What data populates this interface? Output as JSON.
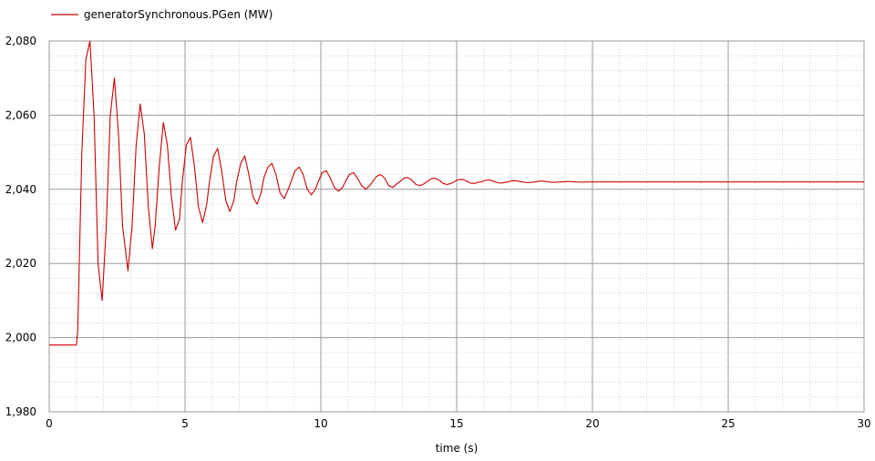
{
  "chart_data": {
    "type": "line",
    "xlabel": "time (s)",
    "ylabel": "",
    "xlim": [
      0,
      30
    ],
    "ylim": [
      1980,
      2080
    ],
    "x_ticks": [
      0,
      5,
      10,
      15,
      20,
      25,
      30
    ],
    "x_tick_labels": [
      "0",
      "5",
      "10",
      "15",
      "20",
      "25",
      "30"
    ],
    "y_ticks": [
      1980,
      2000,
      2020,
      2040,
      2060,
      2080
    ],
    "y_tick_labels": [
      "1,980",
      "2,000",
      "2,020",
      "2,040",
      "2,060",
      "2,080"
    ],
    "grid": true,
    "legend_position": "top-left",
    "series": [
      {
        "name": "generatorSynchronous.PGen (MW)",
        "color": "#cc0000",
        "x": [
          0,
          1.0,
          1.05,
          1.2,
          1.35,
          1.5,
          1.65,
          1.8,
          1.95,
          2.1,
          2.25,
          2.4,
          2.55,
          2.7,
          2.9,
          3.05,
          3.2,
          3.35,
          3.5,
          3.65,
          3.8,
          3.9,
          4.05,
          4.2,
          4.35,
          4.5,
          4.65,
          4.8,
          4.9,
          5.05,
          5.2,
          5.35,
          5.5,
          5.65,
          5.8,
          5.9,
          6.05,
          6.2,
          6.35,
          6.5,
          6.65,
          6.8,
          6.9,
          7.05,
          7.2,
          7.35,
          7.5,
          7.65,
          7.8,
          7.9,
          8.05,
          8.2,
          8.35,
          8.5,
          8.65,
          8.8,
          8.9,
          9.05,
          9.2,
          9.35,
          9.5,
          9.65,
          9.8,
          9.9,
          10.05,
          10.2,
          10.35,
          10.5,
          10.65,
          10.8,
          10.9,
          11.05,
          11.2,
          11.35,
          11.5,
          11.65,
          11.8,
          11.9,
          12.05,
          12.2,
          12.35,
          12.5,
          12.65,
          12.8,
          12.9,
          13.05,
          13.2,
          13.35,
          13.5,
          13.65,
          13.8,
          13.9,
          14.05,
          14.2,
          14.35,
          14.5,
          14.65,
          14.8,
          14.9,
          15.05,
          15.2,
          15.35,
          15.5,
          15.65,
          15.8,
          15.9,
          16.05,
          16.2,
          16.35,
          16.5,
          16.65,
          16.8,
          16.9,
          17.05,
          17.2,
          17.35,
          17.5,
          17.65,
          17.8,
          17.9,
          18.05,
          18.2,
          18.35,
          18.5,
          18.65,
          18.8,
          18.9,
          19.05,
          19.2,
          19.4,
          19.6,
          20,
          22,
          25,
          30
        ],
        "y": [
          1998,
          1998,
          2002,
          2050,
          2075,
          2080,
          2060,
          2020,
          2010,
          2030,
          2060,
          2070,
          2055,
          2030,
          2018,
          2030,
          2052,
          2063,
          2055,
          2035,
          2024,
          2030,
          2046,
          2058,
          2052,
          2038,
          2029,
          2032,
          2042,
          2052,
          2054,
          2046,
          2035,
          2031,
          2036,
          2042,
          2049,
          2051,
          2045,
          2037,
          2034,
          2037,
          2042,
          2047,
          2049,
          2044,
          2038,
          2036,
          2039,
          2043,
          2046,
          2047,
          2044,
          2039,
          2037.5,
          2040,
          2042,
          2045,
          2046,
          2044,
          2040,
          2038.5,
          2040,
          2042,
          2044.5,
          2045,
          2043,
          2040.5,
          2039.5,
          2040.5,
          2042,
          2044,
          2044.5,
          2043,
          2041,
          2040,
          2041,
          2042,
          2043.5,
          2044,
          2043,
          2041,
          2040.5,
          2041.5,
          2042,
          2043,
          2043.2,
          2042.5,
          2041.3,
          2041,
          2041.5,
          2042,
          2042.8,
          2043,
          2042.5,
          2041.6,
          2041.3,
          2041.6,
          2042,
          2042.6,
          2042.7,
          2042.3,
          2041.7,
          2041.6,
          2041.9,
          2042,
          2042.4,
          2042.5,
          2042.2,
          2041.8,
          2041.7,
          2041.9,
          2042,
          2042.3,
          2042.3,
          2042.1,
          2041.9,
          2041.8,
          2041.95,
          2042,
          2042.2,
          2042.2,
          2042.05,
          2041.9,
          2041.9,
          2042,
          2042,
          2042.1,
          2042.1,
          2042,
          2041.95,
          2042,
          2042,
          2042,
          2042
        ]
      }
    ]
  }
}
